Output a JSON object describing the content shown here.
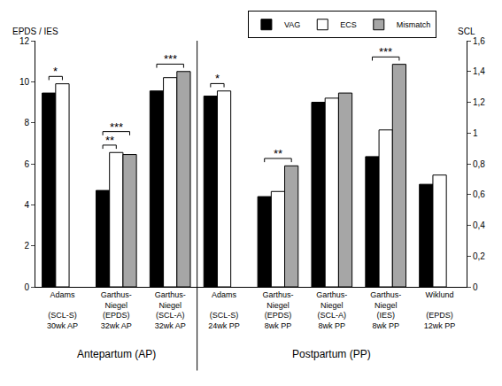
{
  "chart_data": {
    "type": "bar",
    "categories": [
      "Adams\n\n(SCL-S)\n30wk AP",
      "Garthus-\nNiegel\n(EPDS)\n32wk AP",
      "Garthus-\nNiegel\n(SCL-A)\n32wk AP",
      "Adams\n\n(SCL-S)\n24wk PP",
      "Garthus-\nNiegel\n(EPDS)\n8wk PP",
      "Garthus-\nNiegel\n(SCL-A)\n8wk PP",
      "Garthus-\nNiegel\n(IES)\n8wk PP",
      "Wiklund\n\n(EPDS)\n12wk PP"
    ],
    "series": [
      {
        "name": "VAG",
        "color": "#000000",
        "values": [
          9.45,
          4.7,
          9.55,
          9.3,
          4.4,
          9.0,
          6.35,
          5.0
        ]
      },
      {
        "name": "ECS",
        "color": "#ffffff",
        "values": [
          9.9,
          6.55,
          10.2,
          9.55,
          4.65,
          9.2,
          7.65,
          5.45
        ]
      },
      {
        "name": "Mismatch",
        "color": "#a6a6a6",
        "values": [
          null,
          6.45,
          10.5,
          null,
          5.9,
          9.45,
          10.85,
          null
        ]
      }
    ],
    "y_label": "EPDS / IES",
    "y2_label": "SCL",
    "ylim": [
      0,
      12
    ],
    "yticks": [
      0,
      2,
      4,
      6,
      8,
      10,
      12
    ],
    "y2lim": [
      0,
      1.6
    ],
    "y2ticks": [
      0,
      {
        "value": 0.2,
        "label": "0,2"
      },
      {
        "value": 0.4,
        "label": "0,4"
      },
      {
        "value": 0.6,
        "label": "0,6"
      },
      {
        "value": 0.8,
        "label": "0,8"
      },
      1,
      {
        "value": 1.2,
        "label": "1,2"
      },
      {
        "value": 1.4,
        "label": "1,4"
      },
      {
        "value": 1.6,
        "label": "1,6"
      }
    ],
    "groups": [
      {
        "label": "Antepartum (AP)",
        "from": 0,
        "to": 2
      },
      {
        "label": "Postpartum (PP)",
        "from": 3,
        "to": 7
      }
    ],
    "annotations": [
      {
        "category": 0,
        "from": "VAG",
        "to": "ECS",
        "label": "*"
      },
      {
        "category": 1,
        "from": "VAG",
        "to": "ECS",
        "label": "**"
      },
      {
        "category": 1,
        "from": "VAG",
        "to": "Mismatch",
        "label": "***"
      },
      {
        "category": 2,
        "from": "VAG",
        "to": "Mismatch",
        "label": "***"
      },
      {
        "category": 3,
        "from": "VAG",
        "to": "ECS",
        "label": "*"
      },
      {
        "category": 4,
        "from": "VAG",
        "to": "Mismatch",
        "label": "**"
      },
      {
        "category": 6,
        "from": "VAG",
        "to": "Mismatch",
        "label": "***"
      }
    ],
    "legend": "top right",
    "grid": false
  }
}
